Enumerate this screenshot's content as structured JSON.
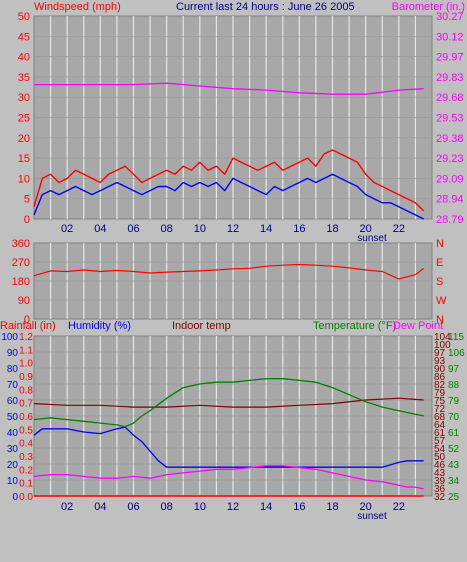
{
  "colors": {
    "background": "#c0c0c0",
    "plot_bg": "#a8a8a8",
    "grid": "#e6e6e6",
    "wind": "#ff0000",
    "gust_line": "#ff0000",
    "wind_low": "#0000ff",
    "barometer": "#ff00ff",
    "title": "#000080",
    "direction": "#ff0000",
    "rainfall": "#ff0000",
    "humidity": "#0000ff",
    "indoor": "#800000",
    "temperature": "#008000",
    "dewpoint": "#ff00ff"
  },
  "chart_data": [
    {
      "type": "line",
      "title": "Current last 24 hours : June 26 2005",
      "left_label": "Windspeed (mph)",
      "right_label": "Barometer (in.)",
      "xlabel": "sunset",
      "x_ticks": [
        "02",
        "04",
        "06",
        "08",
        "10",
        "12",
        "14",
        "16",
        "18",
        "20",
        "22"
      ],
      "left_ticks": [
        "0",
        "5",
        "10",
        "15",
        "20",
        "25",
        "30",
        "35",
        "40",
        "45",
        "50"
      ],
      "right_ticks": [
        "28.79",
        "28.94",
        "29.09",
        "29.23",
        "29.38",
        "29.53",
        "29.68",
        "29.83",
        "29.97",
        "30.12",
        "30.27"
      ],
      "ylim_left": [
        0,
        50
      ],
      "ylim_right": [
        28.79,
        30.27
      ],
      "series": [
        {
          "name": "Windspeed (mph)",
          "color_key": "wind",
          "x": [
            0,
            0.5,
            1,
            1.5,
            2,
            2.5,
            3,
            3.5,
            4,
            4.5,
            5,
            5.5,
            6,
            6.5,
            7,
            7.5,
            8,
            8.5,
            9,
            9.5,
            10,
            10.5,
            11,
            11.5,
            12,
            12.5,
            13,
            13.5,
            14,
            14.5,
            15,
            15.5,
            16,
            16.5,
            17,
            17.5,
            18,
            18.5,
            19,
            19.5,
            20,
            20.5,
            21,
            21.5,
            22,
            22.5,
            23,
            23.5
          ],
          "values": [
            3,
            10,
            11,
            9,
            10,
            12,
            11,
            10,
            9,
            11,
            12,
            13,
            11,
            9,
            10,
            11,
            12,
            11,
            13,
            12,
            14,
            12,
            13,
            11,
            15,
            14,
            13,
            12,
            13,
            14,
            12,
            13,
            14,
            15,
            13,
            16,
            17,
            16,
            15,
            14,
            11,
            9,
            8,
            7,
            6,
            5,
            4,
            2
          ]
        },
        {
          "name": "Low speed",
          "color_key": "wind_low",
          "x": [
            0,
            0.5,
            1,
            1.5,
            2,
            2.5,
            3,
            3.5,
            4,
            4.5,
            5,
            5.5,
            6,
            6.5,
            7,
            7.5,
            8,
            8.5,
            9,
            9.5,
            10,
            10.5,
            11,
            11.5,
            12,
            12.5,
            13,
            13.5,
            14,
            14.5,
            15,
            15.5,
            16,
            16.5,
            17,
            17.5,
            18,
            18.5,
            19,
            19.5,
            20,
            20.5,
            21,
            21.5,
            22,
            22.5,
            23,
            23.5
          ],
          "values": [
            1,
            6,
            7,
            6,
            7,
            8,
            7,
            6,
            7,
            8,
            9,
            8,
            7,
            6,
            7,
            8,
            8,
            7,
            9,
            8,
            9,
            8,
            9,
            7,
            10,
            9,
            8,
            7,
            6,
            8,
            7,
            8,
            9,
            10,
            9,
            10,
            11,
            10,
            9,
            8,
            6,
            5,
            4,
            4,
            3,
            2,
            1,
            0
          ]
        },
        {
          "name": "Barometer (in.)",
          "color_key": "barometer",
          "x": [
            0,
            2,
            4,
            6,
            8,
            10,
            12,
            14,
            16,
            18,
            20,
            22,
            23.5
          ],
          "values": [
            29.77,
            29.77,
            29.77,
            29.77,
            29.78,
            29.76,
            29.74,
            29.73,
            29.71,
            29.7,
            29.7,
            29.73,
            29.74
          ]
        }
      ]
    },
    {
      "type": "line",
      "title": "",
      "left_ticks": [
        "0",
        "90",
        "180",
        "270",
        "360"
      ],
      "right_ticks": [
        "N",
        "W",
        "S",
        "E",
        "N"
      ],
      "ylim": [
        0,
        360
      ],
      "series": [
        {
          "name": "Wind direction",
          "color_key": "direction",
          "x": [
            0,
            1,
            2,
            3,
            4,
            5,
            6,
            7,
            8,
            9,
            10,
            11,
            12,
            13,
            14,
            15,
            16,
            17,
            18,
            19,
            20,
            21,
            22,
            23,
            23.5
          ],
          "values": [
            205,
            228,
            225,
            232,
            225,
            230,
            225,
            218,
            222,
            225,
            228,
            232,
            238,
            240,
            250,
            255,
            258,
            255,
            250,
            242,
            232,
            225,
            190,
            210,
            240
          ]
        }
      ]
    },
    {
      "type": "line",
      "title": "",
      "labels": {
        "rainfall": "Rainfall (in)",
        "humidity": "Humidity (%)",
        "indoor": "Indoor temp",
        "temperature": "Temperature (°F)",
        "dewpoint": "Dew Point"
      },
      "xlabel": "sunset",
      "x_ticks": [
        "02",
        "04",
        "06",
        "08",
        "10",
        "12",
        "14",
        "16",
        "18",
        "20",
        "22"
      ],
      "humidity_ticks": [
        "0",
        "10",
        "20",
        "30",
        "40",
        "50",
        "60",
        "70",
        "80",
        "90",
        "100"
      ],
      "rain_ticks": [
        "0.0",
        "0.1",
        "0.2",
        "0.3",
        "0.4",
        "0.5",
        "0.6",
        "0.7",
        "0.8",
        "0.9",
        "1.0",
        "1.1",
        "1.2"
      ],
      "temp_ticks_left": [
        "32",
        "36",
        "39",
        "43",
        "46",
        "50",
        "54",
        "57",
        "61",
        "64",
        "68",
        "72",
        "75",
        "79",
        "82",
        "86",
        "90",
        "93",
        "97",
        "100",
        "104"
      ],
      "temp_ticks_right": [
        "25",
        "34",
        "43",
        "52",
        "61",
        "70",
        "79",
        "88",
        "97",
        "106",
        "115"
      ],
      "ylim_humidity": [
        0,
        100
      ],
      "ylim_temp": [
        25,
        115
      ],
      "series": [
        {
          "name": "Humidity (%)",
          "color_key": "humidity",
          "x": [
            0,
            0.5,
            1,
            2,
            3,
            4,
            5,
            5.5,
            6,
            6.5,
            7,
            7.5,
            8,
            10,
            12,
            14,
            16,
            18,
            20,
            21,
            22,
            22.5,
            23,
            23.5
          ],
          "values": [
            38,
            42,
            42,
            42,
            40,
            39,
            42,
            43,
            38,
            34,
            28,
            22,
            18,
            18,
            18,
            18,
            18,
            18,
            18,
            18,
            21,
            22,
            22,
            22
          ]
        },
        {
          "name": "Indoor temp",
          "color_key": "indoor",
          "x": [
            0,
            2,
            4,
            6,
            8,
            10,
            12,
            14,
            16,
            18,
            20,
            22,
            23.5
          ],
          "values": [
            77,
            76,
            76,
            75,
            75,
            76,
            75,
            75,
            76,
            77,
            79,
            80,
            79
          ]
        },
        {
          "name": "Temperature (°F)",
          "color_key": "temperature",
          "x": [
            0,
            1,
            2,
            3,
            4,
            5,
            5.5,
            6,
            6.5,
            7,
            8,
            9,
            10,
            11,
            12,
            13,
            14,
            15,
            16,
            17,
            18,
            19,
            20,
            21,
            22,
            23,
            23.5
          ],
          "values": [
            68,
            69,
            68,
            67,
            66,
            65,
            64,
            66,
            70,
            73,
            80,
            86,
            88,
            89,
            89,
            90,
            91,
            91,
            90,
            89,
            86,
            82,
            78,
            75,
            73,
            71,
            70
          ]
        },
        {
          "name": "Dew Point",
          "color_key": "dewpoint",
          "x": [
            0,
            1,
            2,
            3,
            4,
            5,
            6,
            7,
            8,
            9,
            10,
            11,
            12,
            13,
            14,
            15,
            16,
            17,
            18,
            19,
            20,
            21,
            22,
            22.5,
            23,
            23.5
          ],
          "values": [
            36,
            37,
            37,
            36,
            35,
            35,
            36,
            35,
            37,
            38,
            39,
            40,
            40,
            41,
            42,
            42,
            41,
            40,
            38,
            36,
            34,
            33,
            31,
            30,
            30,
            29
          ]
        },
        {
          "name": "Rainfall (in)",
          "color_key": "rainfall",
          "x": [
            0,
            23.5
          ],
          "values": [
            0,
            0
          ]
        }
      ]
    }
  ]
}
